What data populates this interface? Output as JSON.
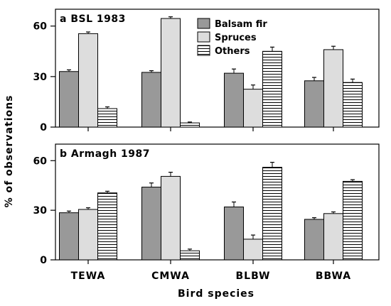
{
  "chart_data": [
    {
      "type": "bar",
      "title": "a  BSL  1983",
      "categories": [
        "TEWA",
        "CMWA",
        "BLBW",
        "BBWA"
      ],
      "ylim": [
        0,
        70
      ],
      "yticks": [
        0,
        30,
        60
      ],
      "series": [
        {
          "name": "Balsam fir",
          "values": [
            33,
            32.5,
            32,
            27.5
          ],
          "errors": [
            1,
            1,
            2.5,
            2
          ],
          "color": "#999999",
          "pattern": "solid"
        },
        {
          "name": "Spruces",
          "values": [
            55.5,
            64.5,
            22.5,
            46
          ],
          "errors": [
            1,
            1,
            2.5,
            2
          ],
          "color": "#dddddd",
          "pattern": "solid"
        },
        {
          "name": "Others",
          "values": [
            11,
            2.5,
            45,
            26.5
          ],
          "errors": [
            1,
            0.5,
            2.5,
            2
          ],
          "color": "#ffffff",
          "pattern": "horizontal-stripes"
        }
      ],
      "legend": "top-center"
    },
    {
      "type": "bar",
      "title": "b  Armagh  1987",
      "categories": [
        "TEWA",
        "CMWA",
        "BLBW",
        "BBWA"
      ],
      "ylim": [
        0,
        70
      ],
      "yticks": [
        0,
        30,
        60
      ],
      "series": [
        {
          "name": "Balsam fir",
          "values": [
            28.5,
            44,
            32,
            24.5
          ],
          "errors": [
            1,
            2.5,
            3,
            1
          ]
        },
        {
          "name": "Spruces",
          "values": [
            30.5,
            50.5,
            12.5,
            28
          ],
          "errors": [
            1,
            2.5,
            2.5,
            1
          ]
        },
        {
          "name": "Others",
          "values": [
            40.5,
            5.5,
            56,
            47.5
          ],
          "errors": [
            1,
            1,
            3,
            1
          ]
        }
      ]
    }
  ],
  "axes": {
    "ylabel": "% of observations",
    "xlabel": "Bird species"
  }
}
